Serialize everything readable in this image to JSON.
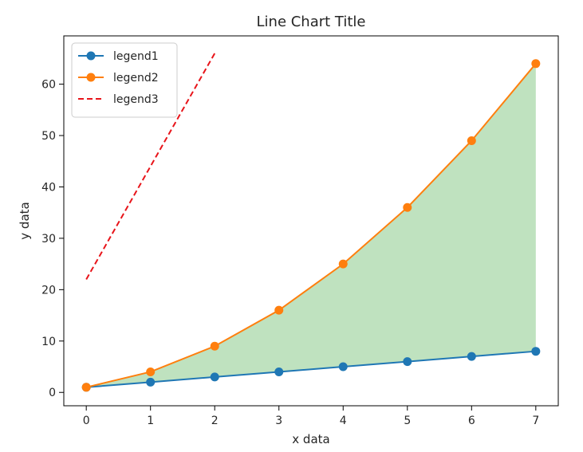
{
  "chart_data": {
    "type": "line",
    "title": "Line Chart Title",
    "xlabel": "x data",
    "ylabel": "y data",
    "xlim": [
      -0.35,
      7.35
    ],
    "ylim": [
      -2.6,
      69.4
    ],
    "xticks": [
      0,
      1,
      2,
      3,
      4,
      5,
      6,
      7
    ],
    "yticks": [
      0,
      10,
      20,
      30,
      40,
      50,
      60
    ],
    "grid": false,
    "legend_position": "upper-left",
    "series": [
      {
        "name": "legend1",
        "style": "solid-marker",
        "color": "#1f77b4",
        "x": [
          0,
          1,
          2,
          3,
          4,
          5,
          6,
          7
        ],
        "y": [
          1,
          2,
          3,
          4,
          5,
          6,
          7,
          8
        ]
      },
      {
        "name": "legend2",
        "style": "solid-marker",
        "color": "#ff7f0e",
        "x": [
          0,
          1,
          2,
          3,
          4,
          5,
          6,
          7
        ],
        "y": [
          1,
          4,
          9,
          16,
          25,
          36,
          49,
          64
        ]
      },
      {
        "name": "legend3",
        "style": "dashed",
        "color": "#e8141a",
        "x": [
          0,
          2
        ],
        "y": [
          22,
          66
        ]
      }
    ],
    "fill_between": {
      "lower": "legend1",
      "upper": "legend2",
      "color": "#2ca02c",
      "opacity": 0.3
    }
  }
}
